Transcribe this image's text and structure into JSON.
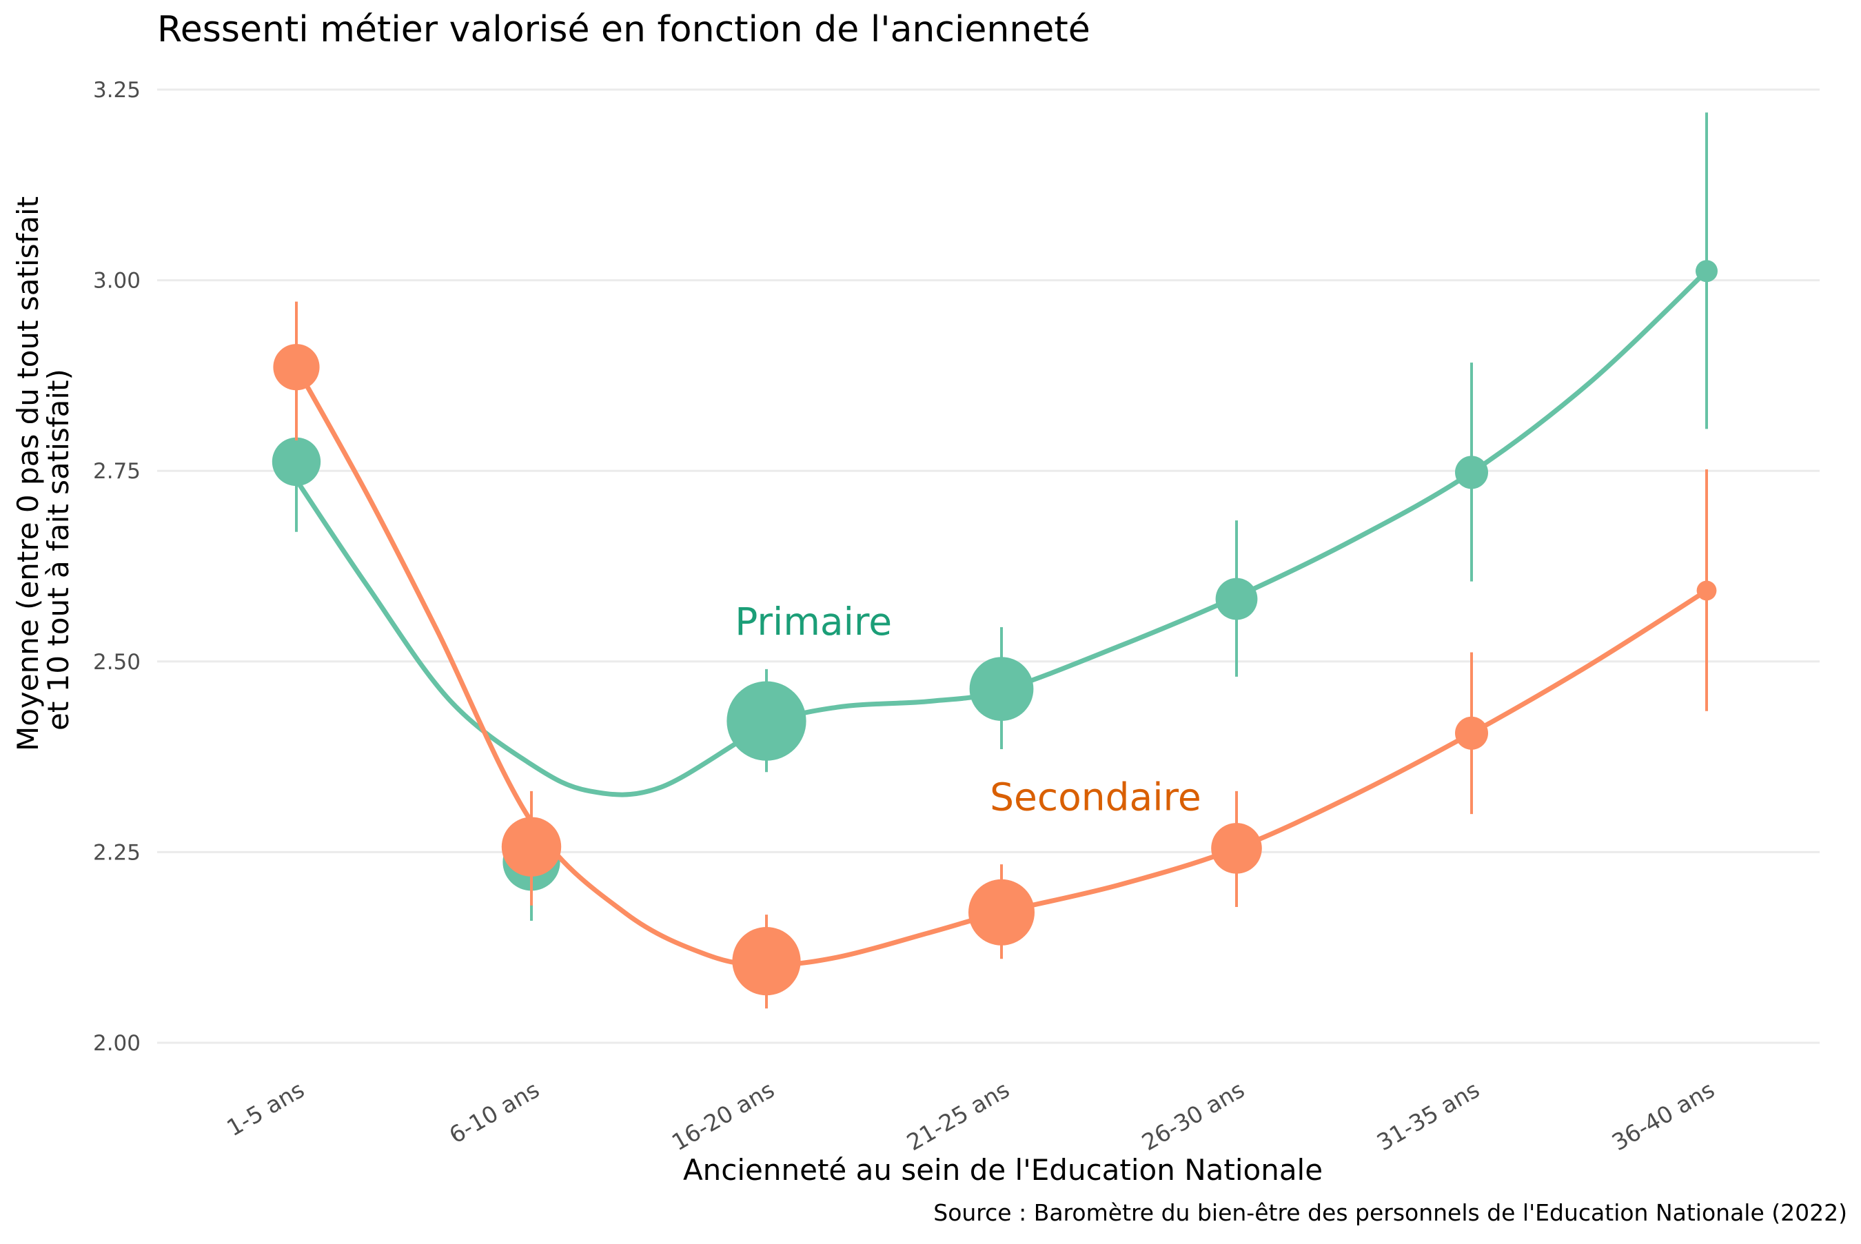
{
  "chart_data": {
    "type": "line",
    "title": "Ressenti métier valorisé en fonction de l'ancienneté",
    "xlabel": "Ancienneté au sein de l'Education Nationale",
    "ylabel_line1": "Moyenne (entre 0 pas du tout satisfait",
    "ylabel_line2": "et 10 tout à fait satisfait)",
    "caption": "Source : Baromètre du bien-être des personnels de l'Education Nationale (2022)",
    "categories": [
      "1-5 ans",
      "6-10 ans",
      "16-20 ans",
      "21-25 ans",
      "26-30 ans",
      "31-35 ans",
      "36-40 ans"
    ],
    "ylim": [
      2.0,
      3.25
    ],
    "yticks": [
      "2.00",
      "2.25",
      "2.50",
      "2.75",
      "3.00",
      "3.25"
    ],
    "grid": true,
    "series": [
      {
        "name": "Primaire",
        "color": "#66c2a5",
        "label_color": "#1b9e77",
        "label_at": {
          "x": 2.2,
          "y": 2.535
        },
        "values": [
          2.762,
          2.237,
          2.422,
          2.464,
          2.582,
          2.748,
          3.012
        ],
        "ci_low": [
          2.67,
          2.16,
          2.355,
          2.385,
          2.48,
          2.605,
          2.805
        ],
        "ci_high": [
          2.855,
          2.31,
          2.49,
          2.545,
          2.685,
          2.892,
          3.22
        ],
        "point_size": [
          2.2,
          2.6,
          3.6,
          2.9,
          1.9,
          1.5,
          1.0
        ],
        "smooth": [
          [
            0,
            2.738
          ],
          [
            0.3,
            2.6
          ],
          [
            0.65,
            2.45
          ],
          [
            1.0,
            2.365
          ],
          [
            1.25,
            2.33
          ],
          [
            1.55,
            2.335
          ],
          [
            2.0,
            2.415
          ],
          [
            2.3,
            2.44
          ],
          [
            2.7,
            2.448
          ],
          [
            3.0,
            2.462
          ],
          [
            3.5,
            2.52
          ],
          [
            4.0,
            2.585
          ],
          [
            4.5,
            2.66
          ],
          [
            5.0,
            2.748
          ],
          [
            5.5,
            2.865
          ],
          [
            6.0,
            3.012
          ]
        ]
      },
      {
        "name": "Secondaire",
        "color": "#fc8d62",
        "label_color": "#d95f02",
        "label_at": {
          "x": 3.4,
          "y": 2.305
        },
        "values": [
          2.886,
          2.257,
          2.107,
          2.171,
          2.255,
          2.406,
          2.593
        ],
        "ci_low": [
          2.79,
          2.18,
          2.045,
          2.11,
          2.178,
          2.3,
          2.435
        ],
        "ci_high": [
          2.972,
          2.33,
          2.168,
          2.234,
          2.33,
          2.512,
          2.752
        ],
        "point_size": [
          2.1,
          2.7,
          3.1,
          3.0,
          2.3,
          1.5,
          0.9
        ],
        "smooth": [
          [
            0,
            2.886
          ],
          [
            0.3,
            2.72
          ],
          [
            0.6,
            2.54
          ],
          [
            1.0,
            2.29
          ],
          [
            1.4,
            2.17
          ],
          [
            1.75,
            2.115
          ],
          [
            2.0,
            2.102
          ],
          [
            2.3,
            2.112
          ],
          [
            2.7,
            2.145
          ],
          [
            3.0,
            2.171
          ],
          [
            3.5,
            2.207
          ],
          [
            4.0,
            2.255
          ],
          [
            4.5,
            2.325
          ],
          [
            5.0,
            2.406
          ],
          [
            5.5,
            2.495
          ],
          [
            6.0,
            2.593
          ]
        ]
      }
    ]
  }
}
